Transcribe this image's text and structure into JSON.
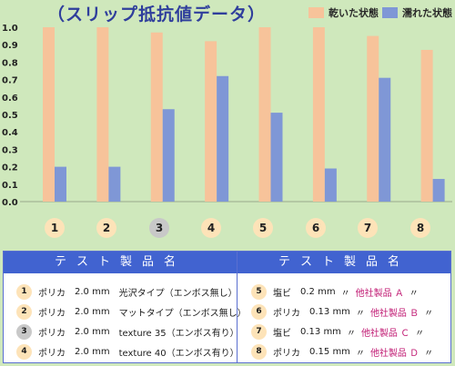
{
  "chart_data": {
    "type": "bar",
    "title": "（スリップ抵抗値データ）",
    "xlabel": "",
    "ylabel": "",
    "ylim": [
      0,
      1.0
    ],
    "y_ticks": [
      "0.0",
      "0.1",
      "0.2",
      "0.3",
      "0.4",
      "0.5",
      "0.6",
      "0.7",
      "0.8",
      "0.9",
      "1.0"
    ],
    "grid": false,
    "legend_position": "top-right",
    "categories": [
      "1",
      "2",
      "3",
      "4",
      "5",
      "6",
      "7",
      "8"
    ],
    "series": [
      {
        "name": "乾いた状態",
        "color": "#f7c39a",
        "values": [
          1.0,
          1.0,
          0.97,
          0.92,
          1.0,
          1.0,
          0.95,
          0.87
        ]
      },
      {
        "name": "濡れた状態",
        "color": "#7f97d6",
        "values": [
          0.2,
          0.2,
          0.53,
          0.72,
          0.51,
          0.19,
          0.71,
          0.13
        ]
      }
    ]
  },
  "category_badge_colors": [
    "#fde3b8",
    "#fde3b8",
    "#c8c8c8",
    "#fde3b8",
    "#fde3b8",
    "#fde3b8",
    "#fde3b8",
    "#fde3b8"
  ],
  "products": {
    "header_left": "テスト製品名",
    "header_right": "テスト製品名",
    "left": [
      {
        "num": "1",
        "badge_color": "#fde3b8",
        "name": "ポリカ",
        "spec": "2.0 mm",
        "desc": "光沢タイプ（エンボス無し）"
      },
      {
        "num": "2",
        "badge_color": "#fde3b8",
        "name": "ポリカ",
        "spec": "2.0 mm",
        "desc": "マットタイプ（エンボス無し）"
      },
      {
        "num": "3",
        "badge_color": "#c8c8c8",
        "name": "ポリカ",
        "spec": "2.0 mm",
        "desc": "texture 35（エンボス有り）"
      },
      {
        "num": "4",
        "badge_color": "#fde3b8",
        "name": "ポリカ",
        "spec": "2.0 mm",
        "desc": "texture 40（エンボス有り）"
      }
    ],
    "right": [
      {
        "num": "5",
        "badge_color": "#fde3b8",
        "name": "塩ビ",
        "spec": "0.2 mm",
        "open": "〃",
        "product": "他社製品 Ａ",
        "close": "〃"
      },
      {
        "num": "6",
        "badge_color": "#fde3b8",
        "name": "ポリカ",
        "spec": "0.13 mm",
        "open": "〃",
        "product": "他社製品 Ｂ",
        "close": "〃"
      },
      {
        "num": "7",
        "badge_color": "#fde3b8",
        "name": "塩ビ",
        "spec": "0.13 mm",
        "open": "〃",
        "product": "他社製品 Ｃ",
        "close": "〃"
      },
      {
        "num": "8",
        "badge_color": "#fde3b8",
        "name": "ポリカ",
        "spec": "0.15 mm",
        "open": "〃",
        "product": "他社製品 Ｄ",
        "close": "〃"
      }
    ]
  }
}
